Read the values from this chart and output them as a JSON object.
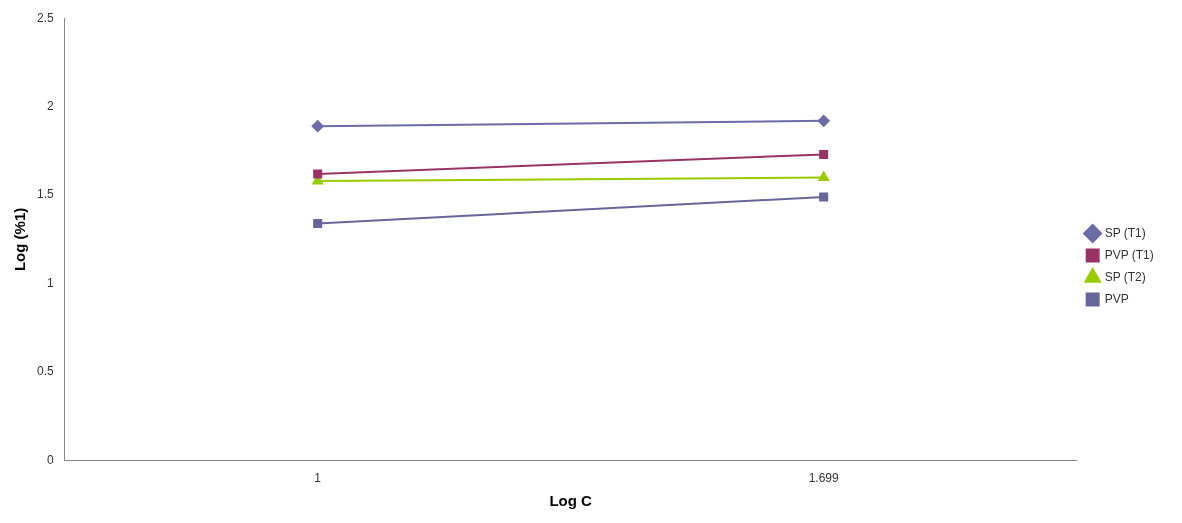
{
  "chart_data": {
    "type": "line",
    "xlabel": "Log C",
    "ylabel": "Log (%1)",
    "categories": [
      "1",
      "1.699"
    ],
    "series": [
      {
        "name": "SP (T1)",
        "color": "#6b6ba8",
        "marker": "diamond",
        "values": [
          1.89,
          1.92
        ]
      },
      {
        "name": "PVP (T1)",
        "color": "#993366",
        "marker": "square",
        "values": [
          1.62,
          1.73
        ]
      },
      {
        "name": "SP (T2)",
        "color": "#99cc00",
        "marker": "triangle",
        "values": [
          1.58,
          1.6
        ]
      },
      {
        "name": "PVP",
        "color": "#666699",
        "marker": "square",
        "values": [
          1.34,
          1.49
        ]
      }
    ],
    "ylim": [
      0,
      2.5
    ],
    "yticks": [
      0,
      0.5,
      1,
      1.5,
      2,
      2.5
    ],
    "grid": false,
    "legend": "right"
  }
}
